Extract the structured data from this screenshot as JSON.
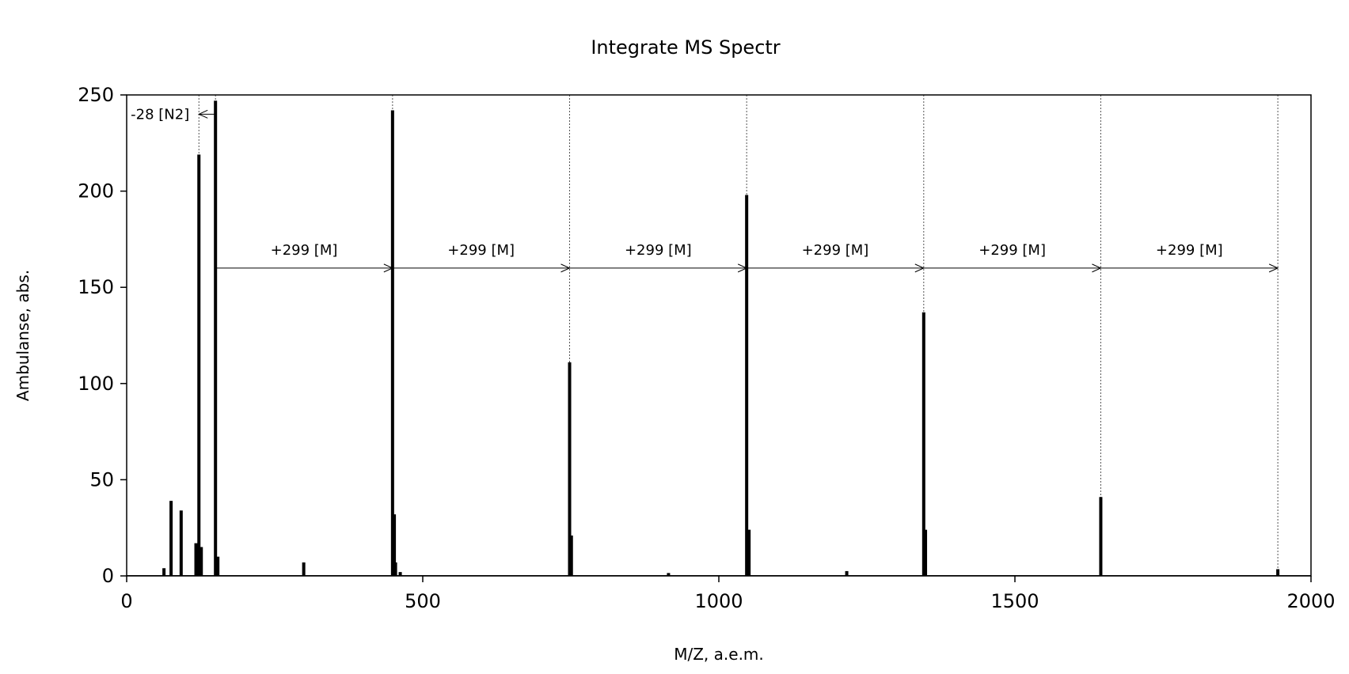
{
  "chart_data": {
    "type": "bar",
    "title": "Integrate MS Spectr",
    "xlabel": "M/Z, a.e.m.",
    "ylabel": "Ambulanse, abs.",
    "xlim": [
      0,
      2000
    ],
    "ylim": [
      0,
      250
    ],
    "xticks": [
      0,
      500,
      1000,
      1500,
      2000
    ],
    "yticks": [
      0,
      50,
      100,
      150,
      200,
      250
    ],
    "grid": false,
    "peaks": [
      {
        "x": 63,
        "y": 4
      },
      {
        "x": 75,
        "y": 39
      },
      {
        "x": 92,
        "y": 34
      },
      {
        "x": 117,
        "y": 17
      },
      {
        "x": 122,
        "y": 219
      },
      {
        "x": 126,
        "y": 15
      },
      {
        "x": 150,
        "y": 247
      },
      {
        "x": 154,
        "y": 10
      },
      {
        "x": 299,
        "y": 7
      },
      {
        "x": 449,
        "y": 242
      },
      {
        "x": 452,
        "y": 32
      },
      {
        "x": 454,
        "y": 7
      },
      {
        "x": 462,
        "y": 2
      },
      {
        "x": 748,
        "y": 111
      },
      {
        "x": 751,
        "y": 21
      },
      {
        "x": 915,
        "y": 1.5
      },
      {
        "x": 1047,
        "y": 198
      },
      {
        "x": 1051,
        "y": 24
      },
      {
        "x": 1216,
        "y": 2.5
      },
      {
        "x": 1346,
        "y": 137
      },
      {
        "x": 1349,
        "y": 24
      },
      {
        "x": 1645,
        "y": 41
      },
      {
        "x": 1944,
        "y": 3.5
      }
    ],
    "markers": [
      122,
      150,
      449,
      748,
      1047,
      1346,
      1645,
      1944
    ],
    "annotations": [
      {
        "label": "-28 [N2]",
        "from": 150,
        "to": 122,
        "y": 240
      },
      {
        "label": "+299 [M]",
        "from": 150,
        "to": 449,
        "y": 160
      },
      {
        "label": "+299 [M]",
        "from": 449,
        "to": 748,
        "y": 160
      },
      {
        "label": "+299 [M]",
        "from": 748,
        "to": 1047,
        "y": 160
      },
      {
        "label": "+299 [M]",
        "from": 1047,
        "to": 1346,
        "y": 160
      },
      {
        "label": "+299 [M]",
        "from": 1346,
        "to": 1645,
        "y": 160
      },
      {
        "label": "+299 [M]",
        "from": 1645,
        "to": 1944,
        "y": 160
      }
    ]
  }
}
